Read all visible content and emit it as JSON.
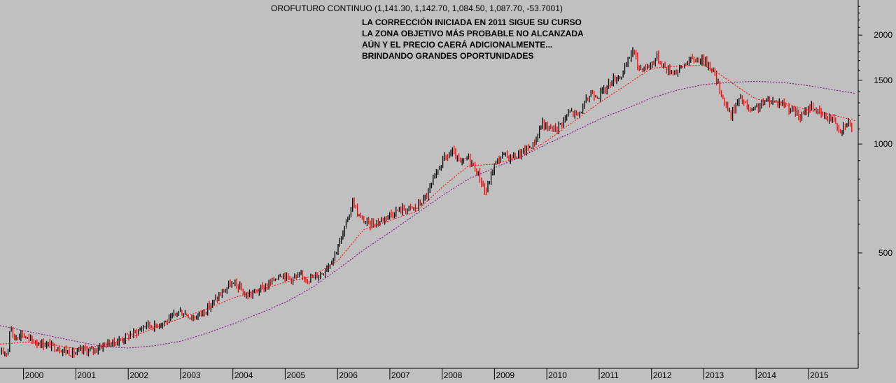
{
  "chart_data": {
    "type": "candlestick",
    "title": "OROFUTURO CONTINUO (1,141.30, 1,142.70, 1,084.50, 1,087.70, -53.7001)",
    "annotation": [
      "LA CORRECCIÓN INICIADA EN 2011 SIGUE SU CURSO",
      "LA ZONA OBJETIVO MÁS PROBABLE NO ALCANZADA",
      "AÚN Y EL PRECIO CAERÁ ADICIONALMENTE...",
      "BRINDANDO GRANDES OPORTUNIDADES"
    ],
    "x_labels": [
      "2000",
      "2001",
      "2002",
      "2003",
      "2004",
      "2005",
      "2006",
      "2007",
      "2008",
      "2009",
      "2010",
      "2011",
      "2012",
      "2013",
      "2014",
      "2015"
    ],
    "y_labels": [
      2000,
      1500,
      1000,
      500
    ],
    "y_scale": "log",
    "ylim": [
      240,
      2500
    ],
    "xlim": [
      1999.55,
      2015.95
    ],
    "colors": {
      "background": "#c0c0c0",
      "up_bar": "#000000",
      "down_bar": "#ff0000",
      "fast_ma": "#ff0000",
      "slow_ma": "#800080"
    },
    "price_path": [
      [
        1999.55,
        262
      ],
      [
        1999.7,
        268
      ],
      [
        1999.75,
        325
      ],
      [
        1999.8,
        290
      ],
      [
        1999.95,
        300
      ],
      [
        2000.1,
        288
      ],
      [
        2000.3,
        282
      ],
      [
        2000.5,
        278
      ],
      [
        2000.7,
        272
      ],
      [
        2000.9,
        265
      ],
      [
        2001.0,
        264
      ],
      [
        2001.15,
        270
      ],
      [
        2001.3,
        268
      ],
      [
        2001.55,
        280
      ],
      [
        2001.75,
        283
      ],
      [
        2002.0,
        295
      ],
      [
        2002.2,
        305
      ],
      [
        2002.35,
        318
      ],
      [
        2002.5,
        313
      ],
      [
        2002.6,
        320
      ],
      [
        2002.8,
        326
      ],
      [
        2002.95,
        345
      ],
      [
        2003.1,
        340
      ],
      [
        2003.25,
        330
      ],
      [
        2003.5,
        350
      ],
      [
        2003.7,
        375
      ],
      [
        2003.95,
        410
      ],
      [
        2004.1,
        405
      ],
      [
        2004.25,
        380
      ],
      [
        2004.5,
        395
      ],
      [
        2004.7,
        410
      ],
      [
        2004.9,
        440
      ],
      [
        2005.1,
        425
      ],
      [
        2005.3,
        430
      ],
      [
        2005.5,
        425
      ],
      [
        2005.7,
        440
      ],
      [
        2005.9,
        480
      ],
      [
        2006.1,
        560
      ],
      [
        2006.3,
        700
      ],
      [
        2006.4,
        630
      ],
      [
        2006.6,
        600
      ],
      [
        2006.8,
        610
      ],
      [
        2006.95,
        635
      ],
      [
        2007.2,
        660
      ],
      [
        2007.5,
        665
      ],
      [
        2007.7,
        720
      ],
      [
        2007.85,
        800
      ],
      [
        2008.0,
        900
      ],
      [
        2008.2,
        950
      ],
      [
        2008.35,
        880
      ],
      [
        2008.5,
        920
      ],
      [
        2008.7,
        820
      ],
      [
        2008.83,
        730
      ],
      [
        2009.0,
        880
      ],
      [
        2009.15,
        930
      ],
      [
        2009.3,
        920
      ],
      [
        2009.5,
        940
      ],
      [
        2009.75,
        1000
      ],
      [
        2009.92,
        1150
      ],
      [
        2010.0,
        1100
      ],
      [
        2010.2,
        1110
      ],
      [
        2010.45,
        1230
      ],
      [
        2010.6,
        1200
      ],
      [
        2010.85,
        1390
      ],
      [
        2011.0,
        1360
      ],
      [
        2011.25,
        1500
      ],
      [
        2011.45,
        1560
      ],
      [
        2011.65,
        1840
      ],
      [
        2011.75,
        1620
      ],
      [
        2011.95,
        1640
      ],
      [
        2012.1,
        1740
      ],
      [
        2012.3,
        1600
      ],
      [
        2012.5,
        1590
      ],
      [
        2012.7,
        1700
      ],
      [
        2012.95,
        1720
      ],
      [
        2013.15,
        1630
      ],
      [
        2013.3,
        1420
      ],
      [
        2013.5,
        1200
      ],
      [
        2013.7,
        1340
      ],
      [
        2013.9,
        1220
      ],
      [
        2014.1,
        1290
      ],
      [
        2014.25,
        1320
      ],
      [
        2014.5,
        1300
      ],
      [
        2014.7,
        1240
      ],
      [
        2014.85,
        1180
      ],
      [
        2015.05,
        1280
      ],
      [
        2015.25,
        1200
      ],
      [
        2015.5,
        1170
      ],
      [
        2015.6,
        1090
      ],
      [
        2015.75,
        1160
      ],
      [
        2015.85,
        1090
      ]
    ],
    "fast_ma_path": [
      [
        1999.55,
        280
      ],
      [
        2000.0,
        283
      ],
      [
        2000.5,
        280
      ],
      [
        2001.0,
        272
      ],
      [
        2001.5,
        277
      ],
      [
        2002.0,
        290
      ],
      [
        2002.5,
        310
      ],
      [
        2003.0,
        330
      ],
      [
        2003.5,
        350
      ],
      [
        2004.0,
        375
      ],
      [
        2004.5,
        395
      ],
      [
        2005.0,
        415
      ],
      [
        2005.5,
        430
      ],
      [
        2006.0,
        475
      ],
      [
        2006.5,
        580
      ],
      [
        2007.0,
        615
      ],
      [
        2007.5,
        650
      ],
      [
        2008.0,
        760
      ],
      [
        2008.5,
        870
      ],
      [
        2009.0,
        880
      ],
      [
        2009.5,
        920
      ],
      [
        2010.0,
        1020
      ],
      [
        2010.5,
        1150
      ],
      [
        2011.0,
        1300
      ],
      [
        2011.5,
        1450
      ],
      [
        2012.0,
        1620
      ],
      [
        2012.5,
        1640
      ],
      [
        2013.0,
        1650
      ],
      [
        2013.3,
        1560
      ],
      [
        2013.7,
        1420
      ],
      [
        2014.0,
        1330
      ],
      [
        2014.5,
        1300
      ],
      [
        2015.0,
        1240
      ],
      [
        2015.5,
        1200
      ],
      [
        2015.9,
        1160
      ]
    ],
    "slow_ma_path": [
      [
        1999.55,
        315
      ],
      [
        2000.0,
        305
      ],
      [
        2000.5,
        295
      ],
      [
        2001.0,
        285
      ],
      [
        2001.5,
        276
      ],
      [
        2002.0,
        273
      ],
      [
        2002.5,
        277
      ],
      [
        2003.0,
        285
      ],
      [
        2003.5,
        300
      ],
      [
        2004.0,
        318
      ],
      [
        2004.5,
        340
      ],
      [
        2005.0,
        365
      ],
      [
        2005.5,
        400
      ],
      [
        2006.0,
        450
      ],
      [
        2006.5,
        510
      ],
      [
        2007.0,
        570
      ],
      [
        2007.5,
        640
      ],
      [
        2008.0,
        720
      ],
      [
        2008.5,
        800
      ],
      [
        2009.0,
        860
      ],
      [
        2009.5,
        920
      ],
      [
        2010.0,
        1000
      ],
      [
        2010.5,
        1080
      ],
      [
        2011.0,
        1170
      ],
      [
        2011.5,
        1250
      ],
      [
        2012.0,
        1340
      ],
      [
        2012.5,
        1410
      ],
      [
        2013.0,
        1460
      ],
      [
        2013.5,
        1480
      ],
      [
        2014.0,
        1490
      ],
      [
        2014.5,
        1480
      ],
      [
        2015.0,
        1450
      ],
      [
        2015.5,
        1410
      ],
      [
        2015.9,
        1380
      ]
    ]
  }
}
